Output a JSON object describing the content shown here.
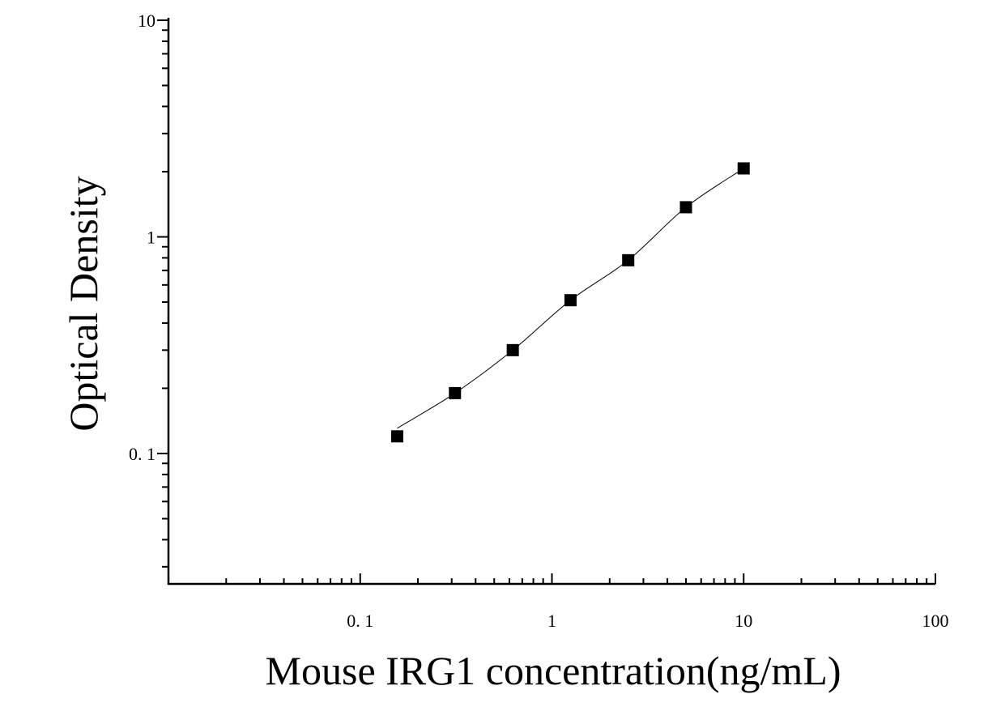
{
  "chart_data": {
    "type": "scatter",
    "xlabel": "Mouse IRG1 concentration(ng/mL)",
    "ylabel": "Optical Density",
    "x_scale": "log",
    "y_scale": "log",
    "xlim": [
      0.01,
      100
    ],
    "ylim": [
      0.025,
      10
    ],
    "x_ticks": [
      {
        "value": 0.1,
        "label": "0. 1"
      },
      {
        "value": 1,
        "label": "1"
      },
      {
        "value": 10,
        "label": "10"
      },
      {
        "value": 100,
        "label": "100"
      }
    ],
    "y_ticks": [
      {
        "value": 0.1,
        "label": "0. 1"
      },
      {
        "value": 1,
        "label": "1"
      },
      {
        "value": 10,
        "label": "10"
      }
    ],
    "grid": false,
    "series": [
      {
        "marker": "square",
        "color": "#000000",
        "fit_line": true,
        "x": [
          0.156,
          0.312,
          0.625,
          1.25,
          2.5,
          5,
          10
        ],
        "y": [
          0.12,
          0.19,
          0.3,
          0.51,
          0.78,
          1.37,
          2.07
        ]
      }
    ]
  }
}
